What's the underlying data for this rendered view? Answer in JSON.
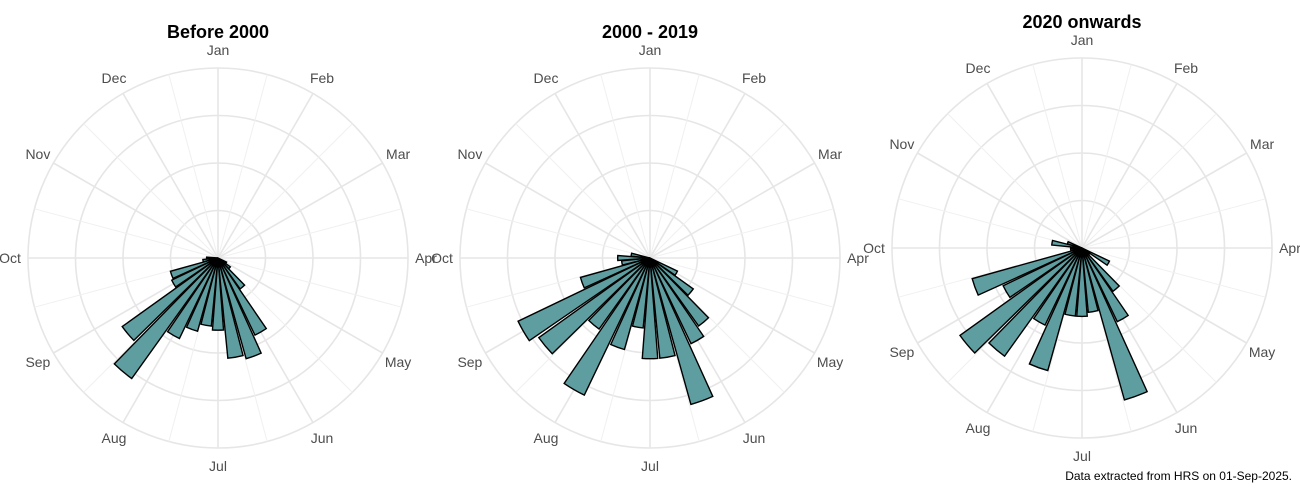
{
  "caption": "Data extracted from HRS on 01-Sep-2025.",
  "colors": {
    "bar_fill": "#5f9ea0",
    "bar_stroke": "#000000",
    "grid": "#e6e6e6",
    "label": "#4d4d4d"
  },
  "chart_data": [
    {
      "type": "polar-bar",
      "title": "Before 2000",
      "months": [
        "Jan",
        "Feb",
        "Mar",
        "Apr",
        "May",
        "Jun",
        "Jul",
        "Aug",
        "Sep",
        "Oct",
        "Nov",
        "Dec"
      ],
      "rmax": 1,
      "bins": [
        {
          "a": 120,
          "r": 0.05
        },
        {
          "a": 130,
          "r": 0.08
        },
        {
          "a": 140,
          "r": 0.2
        },
        {
          "a": 150,
          "r": 0.45
        },
        {
          "a": 160,
          "r": 0.55
        },
        {
          "a": 170,
          "r": 0.53
        },
        {
          "a": 180,
          "r": 0.38
        },
        {
          "a": 190,
          "r": 0.36
        },
        {
          "a": 200,
          "r": 0.4
        },
        {
          "a": 210,
          "r": 0.47
        },
        {
          "a": 220,
          "r": 0.78
        },
        {
          "a": 230,
          "r": 0.62
        },
        {
          "a": 240,
          "r": 0.27
        },
        {
          "a": 250,
          "r": 0.26
        },
        {
          "a": 260,
          "r": 0.08
        },
        {
          "a": 270,
          "r": 0.06
        }
      ]
    },
    {
      "type": "polar-bar",
      "title": "2000 - 2019",
      "months": [
        "Jan",
        "Feb",
        "Mar",
        "Apr",
        "May",
        "Jun",
        "Jul",
        "Aug",
        "Sep",
        "Oct",
        "Nov",
        "Dec"
      ],
      "rmax": 1,
      "bins": [
        {
          "a": 120,
          "r": 0.16
        },
        {
          "a": 130,
          "r": 0.28
        },
        {
          "a": 140,
          "r": 0.44
        },
        {
          "a": 150,
          "r": 0.5
        },
        {
          "a": 160,
          "r": 0.8
        },
        {
          "a": 170,
          "r": 0.53
        },
        {
          "a": 180,
          "r": 0.53
        },
        {
          "a": 190,
          "r": 0.37
        },
        {
          "a": 200,
          "r": 0.5
        },
        {
          "a": 210,
          "r": 0.8
        },
        {
          "a": 220,
          "r": 0.46
        },
        {
          "a": 230,
          "r": 0.72
        },
        {
          "a": 240,
          "r": 0.77
        },
        {
          "a": 250,
          "r": 0.38
        },
        {
          "a": 260,
          "r": 0.15
        },
        {
          "a": 270,
          "r": 0.17
        },
        {
          "a": 280,
          "r": 0.1
        }
      ]
    },
    {
      "type": "polar-bar",
      "title": "2020 onwards",
      "months": [
        "Jan",
        "Feb",
        "Mar",
        "Apr",
        "May",
        "Jun",
        "Jul",
        "Aug",
        "Sep",
        "Oct",
        "Nov",
        "Dec"
      ],
      "rmax": 1,
      "bins": [
        {
          "a": 120,
          "r": 0.16
        },
        {
          "a": 130,
          "r": 0.05
        },
        {
          "a": 140,
          "r": 0.28
        },
        {
          "a": 150,
          "r": 0.43
        },
        {
          "a": 160,
          "r": 0.83
        },
        {
          "a": 170,
          "r": 0.34
        },
        {
          "a": 180,
          "r": 0.36
        },
        {
          "a": 190,
          "r": 0.36
        },
        {
          "a": 200,
          "r": 0.67
        },
        {
          "a": 210,
          "r": 0.45
        },
        {
          "a": 220,
          "r": 0.7
        },
        {
          "a": 230,
          "r": 0.79
        },
        {
          "a": 240,
          "r": 0.46
        },
        {
          "a": 250,
          "r": 0.6
        },
        {
          "a": 260,
          "r": 0.06
        },
        {
          "a": 270,
          "r": 0.06
        },
        {
          "a": 280,
          "r": 0.16
        },
        {
          "a": 290,
          "r": 0.08
        }
      ]
    }
  ]
}
